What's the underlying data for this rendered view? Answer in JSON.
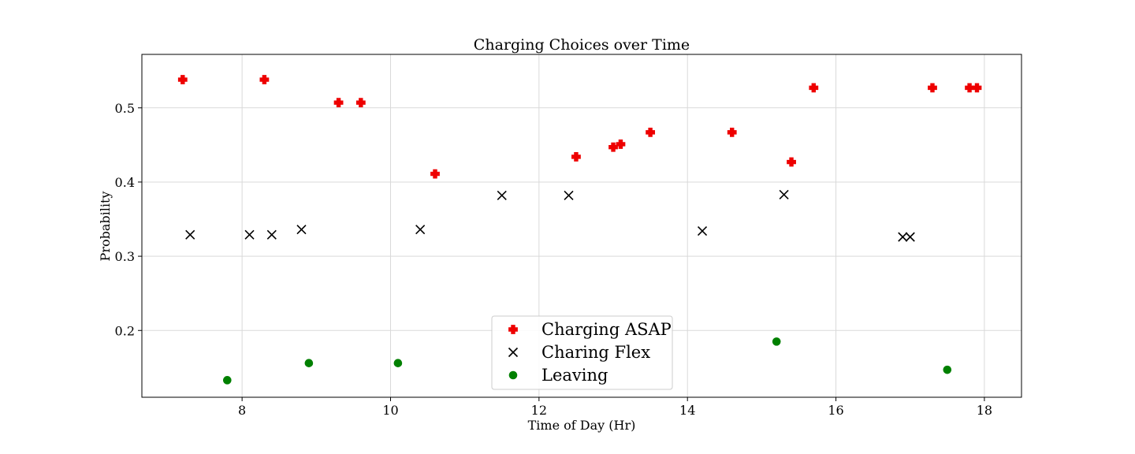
{
  "chart_data": {
    "type": "scatter",
    "title": "Charging Choices over Time",
    "xlabel": "Time of Day (Hr)",
    "ylabel": "Probability",
    "xlim": [
      6.65,
      18.5
    ],
    "ylim": [
      0.11,
      0.572
    ],
    "xticks": [
      8,
      10,
      12,
      14,
      16,
      18
    ],
    "yticks": [
      0.2,
      0.3,
      0.4,
      0.5
    ],
    "xtick_labels": [
      "8",
      "10",
      "12",
      "14",
      "16",
      "18"
    ],
    "ytick_labels": [
      "0.2",
      "0.3",
      "0.4",
      "0.5"
    ],
    "grid": true,
    "legend_position": "lower-center",
    "series": [
      {
        "name": "Charging ASAP",
        "marker": "plus-filled",
        "color": "#ee0000",
        "points": [
          {
            "x": 7.2,
            "y": 0.538
          },
          {
            "x": 8.3,
            "y": 0.538
          },
          {
            "x": 9.3,
            "y": 0.507
          },
          {
            "x": 9.6,
            "y": 0.507
          },
          {
            "x": 10.6,
            "y": 0.411
          },
          {
            "x": 12.5,
            "y": 0.434
          },
          {
            "x": 13.0,
            "y": 0.447
          },
          {
            "x": 13.1,
            "y": 0.451
          },
          {
            "x": 13.5,
            "y": 0.467
          },
          {
            "x": 14.6,
            "y": 0.467
          },
          {
            "x": 15.4,
            "y": 0.427
          },
          {
            "x": 15.7,
            "y": 0.527
          },
          {
            "x": 17.3,
            "y": 0.527
          },
          {
            "x": 17.8,
            "y": 0.527
          },
          {
            "x": 17.9,
            "y": 0.527
          }
        ]
      },
      {
        "name": "Charing Flex",
        "marker": "x",
        "color": "#000000",
        "points": [
          {
            "x": 7.3,
            "y": 0.329
          },
          {
            "x": 8.1,
            "y": 0.329
          },
          {
            "x": 8.4,
            "y": 0.329
          },
          {
            "x": 8.8,
            "y": 0.336
          },
          {
            "x": 10.4,
            "y": 0.336
          },
          {
            "x": 11.5,
            "y": 0.382
          },
          {
            "x": 12.4,
            "y": 0.382
          },
          {
            "x": 14.2,
            "y": 0.334
          },
          {
            "x": 15.3,
            "y": 0.383
          },
          {
            "x": 16.9,
            "y": 0.326
          },
          {
            "x": 17.0,
            "y": 0.326
          }
        ]
      },
      {
        "name": "Leaving",
        "marker": "circle",
        "color": "#008000",
        "points": [
          {
            "x": 7.8,
            "y": 0.133
          },
          {
            "x": 8.9,
            "y": 0.156
          },
          {
            "x": 10.1,
            "y": 0.156
          },
          {
            "x": 15.2,
            "y": 0.185
          },
          {
            "x": 17.5,
            "y": 0.147
          }
        ]
      }
    ]
  }
}
